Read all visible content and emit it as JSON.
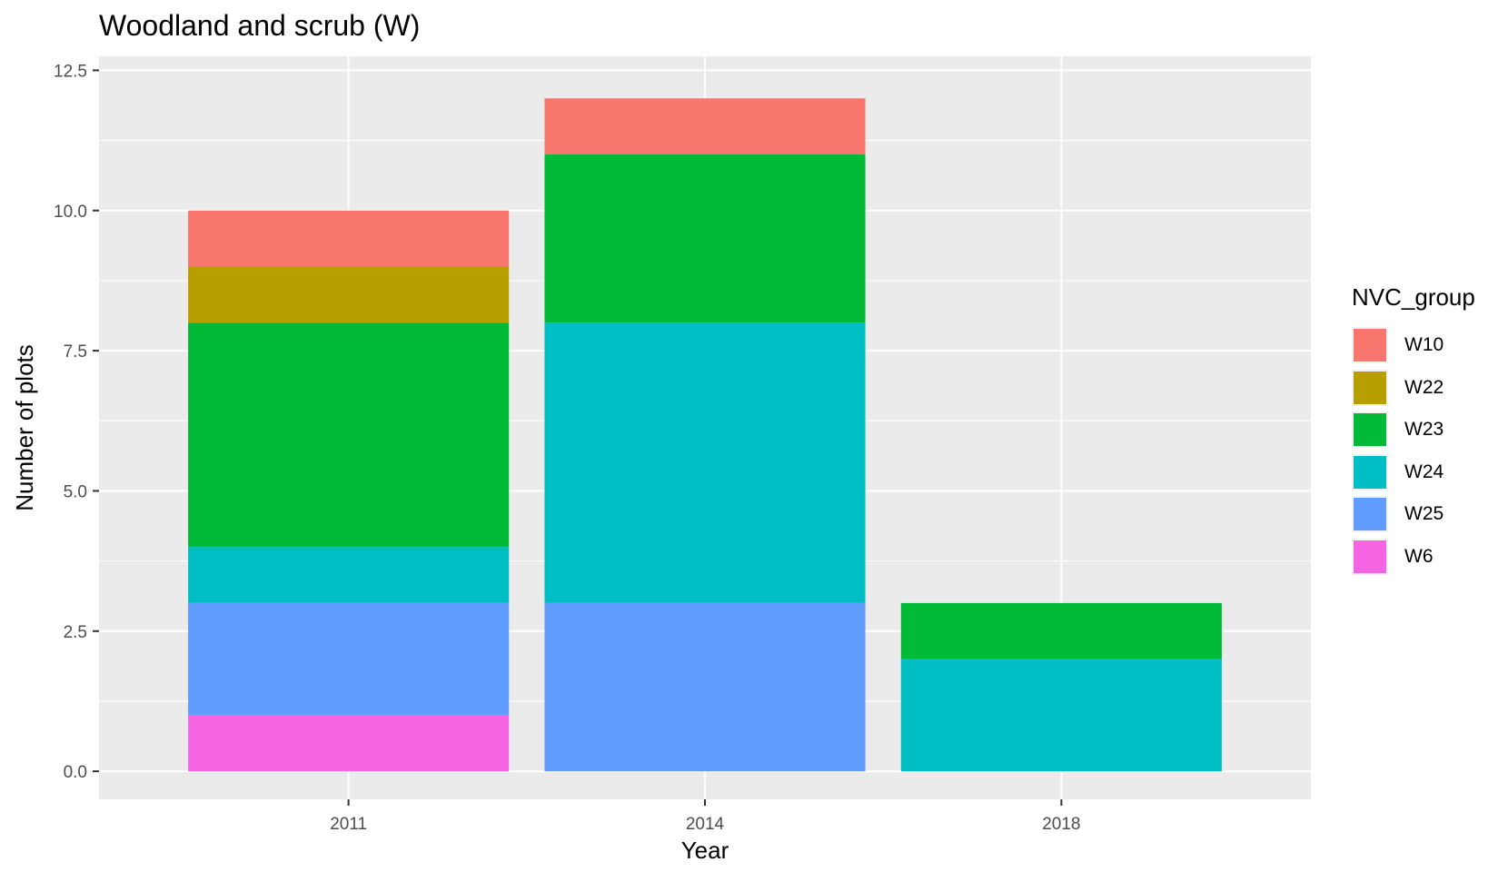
{
  "chart_data": {
    "type": "bar",
    "stacked": true,
    "title": "Woodland and scrub (W)",
    "xlabel": "Year",
    "ylabel": "Number of plots",
    "categories": [
      "2011",
      "2014",
      "2018"
    ],
    "ylim": [
      -0.5,
      12.75
    ],
    "yticks": [
      0.0,
      2.5,
      5.0,
      7.5,
      10.0,
      12.5
    ],
    "ytick_labels": [
      "0.0",
      "2.5",
      "5.0",
      "7.5",
      "10.0",
      "12.5"
    ],
    "grid": true,
    "legend": {
      "title": "NVC_group",
      "position": "right"
    },
    "series": [
      {
        "name": "W10",
        "color": "#F8766D",
        "values": [
          1,
          1,
          0
        ]
      },
      {
        "name": "W22",
        "color": "#B79F00",
        "values": [
          1,
          0,
          0
        ]
      },
      {
        "name": "W23",
        "color": "#00BA38",
        "values": [
          4,
          3,
          1
        ]
      },
      {
        "name": "W24",
        "color": "#00BFC4",
        "values": [
          1,
          5,
          2
        ]
      },
      {
        "name": "W25",
        "color": "#619CFF",
        "values": [
          2,
          3,
          0
        ]
      },
      {
        "name": "W6",
        "color": "#F564E3",
        "values": [
          1,
          0,
          0
        ]
      }
    ]
  }
}
